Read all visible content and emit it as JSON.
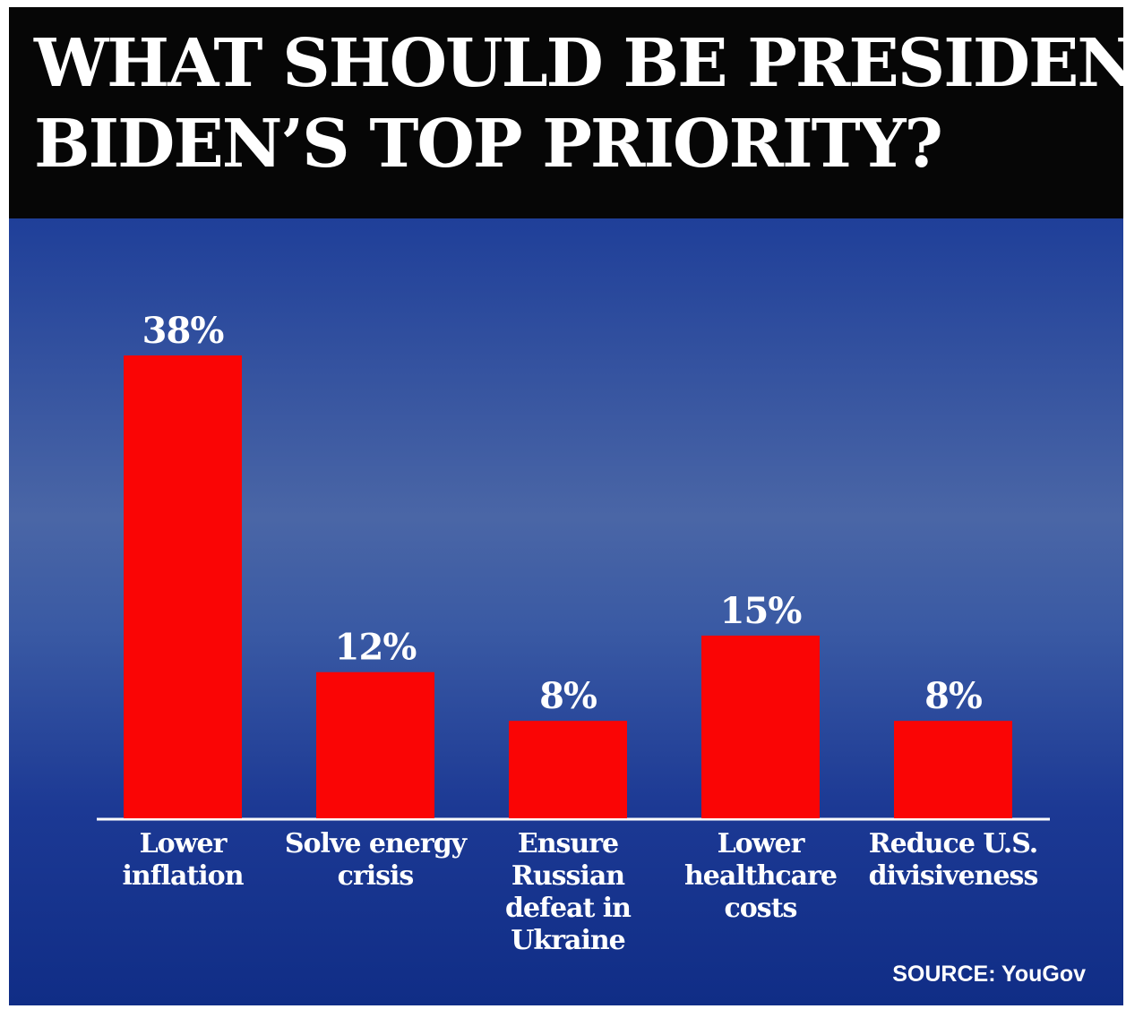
{
  "header": {
    "title_line1": "WHAT SHOULD BE PRESIDENT",
    "title_line2": "BIDEN’S TOP PRIORITY?"
  },
  "source": "SOURCE: YouGov",
  "colors": {
    "bar": "#fa0505",
    "background": "#2a4a9e",
    "header": "#060606",
    "text": "#ffffff"
  },
  "chart_data": {
    "type": "bar",
    "title": "WHAT SHOULD BE PRESIDENT BIDEN’S TOP PRIORITY?",
    "categories": [
      [
        "Lower",
        "inflation"
      ],
      [
        "Solve energy",
        "crisis"
      ],
      [
        "Ensure",
        "Russian",
        "defeat in",
        "Ukraine"
      ],
      [
        "Lower",
        "healthcare",
        "costs"
      ],
      [
        "Reduce U.S.",
        "divisiveness"
      ]
    ],
    "values": [
      38,
      12,
      8,
      15,
      8
    ],
    "value_labels": [
      "38%",
      "12%",
      "8%",
      "15%",
      "8%"
    ],
    "xlabel": "",
    "ylabel": "",
    "ylim": [
      0,
      38
    ],
    "grid": false,
    "legend": "none"
  }
}
